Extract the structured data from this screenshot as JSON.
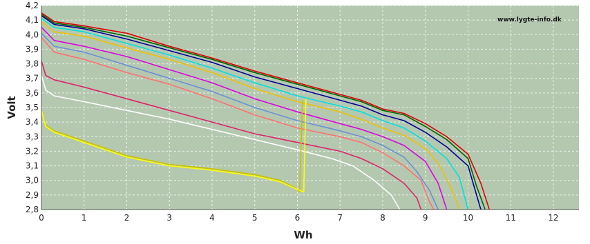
{
  "chart_data": {
    "type": "line",
    "xlabel": "Wh",
    "ylabel": "Volt",
    "xlim": [
      0,
      12.6
    ],
    "ylim": [
      2.8,
      4.2
    ],
    "xticks": [
      "0",
      "1",
      "2",
      "3",
      "4",
      "5",
      "6",
      "7",
      "8",
      "9",
      "10",
      "11",
      "12"
    ],
    "yticks": [
      "2,8",
      "2,9",
      "3,0",
      "3,1",
      "3,2",
      "3,3",
      "3,4",
      "3,5",
      "3,6",
      "3,7",
      "3,8",
      "3,9",
      "4,0",
      "4,1",
      "4,2"
    ],
    "grid": true,
    "watermark": "www.lygte-info.dk",
    "background": "#b4c8b0",
    "series": [
      {
        "color": "#e00000",
        "points": [
          [
            0,
            4.15
          ],
          [
            0.3,
            4.09
          ],
          [
            1,
            4.06
          ],
          [
            2,
            4.01
          ],
          [
            3,
            3.92
          ],
          [
            4,
            3.84
          ],
          [
            5,
            3.75
          ],
          [
            6,
            3.67
          ],
          [
            7,
            3.59
          ],
          [
            7.5,
            3.55
          ],
          [
            8,
            3.49
          ],
          [
            8.5,
            3.46
          ],
          [
            9,
            3.39
          ],
          [
            9.5,
            3.3
          ],
          [
            10,
            3.18
          ],
          [
            10.3,
            2.98
          ],
          [
            10.5,
            2.8
          ]
        ]
      },
      {
        "color": "#006400",
        "points": [
          [
            0,
            4.14
          ],
          [
            0.3,
            4.08
          ],
          [
            1,
            4.05
          ],
          [
            2,
            3.99
          ],
          [
            3,
            3.91
          ],
          [
            4,
            3.83
          ],
          [
            5,
            3.74
          ],
          [
            6,
            3.66
          ],
          [
            7,
            3.58
          ],
          [
            7.5,
            3.54
          ],
          [
            8,
            3.48
          ],
          [
            8.5,
            3.45
          ],
          [
            9,
            3.37
          ],
          [
            9.5,
            3.28
          ],
          [
            10,
            3.15
          ],
          [
            10.2,
            2.96
          ],
          [
            10.4,
            2.8
          ]
        ]
      },
      {
        "color": "#000099",
        "points": [
          [
            0,
            4.13
          ],
          [
            0.3,
            4.07
          ],
          [
            1,
            4.04
          ],
          [
            2,
            3.97
          ],
          [
            3,
            3.89
          ],
          [
            4,
            3.81
          ],
          [
            5,
            3.71
          ],
          [
            6,
            3.63
          ],
          [
            7,
            3.55
          ],
          [
            7.5,
            3.51
          ],
          [
            8,
            3.45
          ],
          [
            8.5,
            3.41
          ],
          [
            9,
            3.33
          ],
          [
            9.5,
            3.23
          ],
          [
            10,
            3.1
          ],
          [
            10.2,
            2.9
          ],
          [
            10.3,
            2.8
          ]
        ]
      },
      {
        "color": "#00e0e0",
        "points": [
          [
            0,
            4.11
          ],
          [
            0.3,
            4.05
          ],
          [
            1,
            4.02
          ],
          [
            2,
            3.94
          ],
          [
            3,
            3.86
          ],
          [
            4,
            3.77
          ],
          [
            5,
            3.67
          ],
          [
            6,
            3.58
          ],
          [
            7,
            3.51
          ],
          [
            7.5,
            3.47
          ],
          [
            8,
            3.41
          ],
          [
            8.5,
            3.36
          ],
          [
            9,
            3.27
          ],
          [
            9.5,
            3.15
          ],
          [
            9.8,
            3.02
          ],
          [
            10,
            2.8
          ]
        ]
      },
      {
        "color": "#f0c000",
        "points": [
          [
            0,
            4.09
          ],
          [
            0.3,
            4.02
          ],
          [
            1,
            3.99
          ],
          [
            2,
            3.91
          ],
          [
            3,
            3.83
          ],
          [
            4,
            3.74
          ],
          [
            5,
            3.63
          ],
          [
            6,
            3.54
          ],
          [
            7,
            3.47
          ],
          [
            7.5,
            3.42
          ],
          [
            8,
            3.36
          ],
          [
            8.5,
            3.31
          ],
          [
            9,
            3.22
          ],
          [
            9.3,
            3.12
          ],
          [
            9.6,
            2.95
          ],
          [
            9.8,
            2.8
          ]
        ]
      },
      {
        "color": "#e000e0",
        "points": [
          [
            0,
            4.05
          ],
          [
            0.3,
            3.96
          ],
          [
            1,
            3.92
          ],
          [
            2,
            3.85
          ],
          [
            3,
            3.76
          ],
          [
            4,
            3.67
          ],
          [
            5,
            3.56
          ],
          [
            6,
            3.47
          ],
          [
            7,
            3.39
          ],
          [
            7.5,
            3.35
          ],
          [
            8,
            3.3
          ],
          [
            8.5,
            3.24
          ],
          [
            9,
            3.13
          ],
          [
            9.3,
            2.98
          ],
          [
            9.5,
            2.8
          ]
        ]
      },
      {
        "color": "#6a8fd8",
        "points": [
          [
            0,
            4.01
          ],
          [
            0.3,
            3.92
          ],
          [
            1,
            3.88
          ],
          [
            2,
            3.79
          ],
          [
            3,
            3.7
          ],
          [
            4,
            3.61
          ],
          [
            5,
            3.5
          ],
          [
            6,
            3.41
          ],
          [
            7,
            3.34
          ],
          [
            7.5,
            3.3
          ],
          [
            8,
            3.24
          ],
          [
            8.5,
            3.16
          ],
          [
            8.8,
            3.06
          ],
          [
            9.1,
            2.93
          ],
          [
            9.3,
            2.8
          ]
        ]
      },
      {
        "color": "#ff7070",
        "points": [
          [
            0,
            3.98
          ],
          [
            0.3,
            3.88
          ],
          [
            1,
            3.83
          ],
          [
            2,
            3.74
          ],
          [
            3,
            3.66
          ],
          [
            4,
            3.56
          ],
          [
            5,
            3.45
          ],
          [
            6,
            3.36
          ],
          [
            7,
            3.3
          ],
          [
            7.5,
            3.26
          ],
          [
            8,
            3.19
          ],
          [
            8.5,
            3.1
          ],
          [
            8.9,
            3.0
          ],
          [
            9.1,
            2.85
          ],
          [
            9.2,
            2.8
          ]
        ]
      },
      {
        "color": "#e0206a",
        "points": [
          [
            0,
            3.82
          ],
          [
            0.1,
            3.72
          ],
          [
            0.3,
            3.69
          ],
          [
            1,
            3.64
          ],
          [
            2,
            3.56
          ],
          [
            3,
            3.48
          ],
          [
            4,
            3.4
          ],
          [
            5,
            3.32
          ],
          [
            6,
            3.26
          ],
          [
            7,
            3.2
          ],
          [
            7.5,
            3.15
          ],
          [
            8,
            3.08
          ],
          [
            8.5,
            2.98
          ],
          [
            8.8,
            2.88
          ],
          [
            8.9,
            2.8
          ]
        ]
      },
      {
        "color": "#ffffff",
        "points": [
          [
            0,
            3.72
          ],
          [
            0.1,
            3.62
          ],
          [
            0.3,
            3.58
          ],
          [
            1,
            3.54
          ],
          [
            2,
            3.48
          ],
          [
            3,
            3.42
          ],
          [
            4,
            3.35
          ],
          [
            5,
            3.28
          ],
          [
            6,
            3.21
          ],
          [
            6.8,
            3.15
          ],
          [
            7.3,
            3.1
          ],
          [
            7.8,
            3.0
          ],
          [
            8.2,
            2.9
          ],
          [
            8.4,
            2.8
          ]
        ]
      },
      {
        "color": "#c8c000",
        "points": [
          [
            0,
            3.48
          ],
          [
            0.1,
            3.38
          ],
          [
            0.3,
            3.34
          ],
          [
            1,
            3.27
          ],
          [
            2,
            3.17
          ],
          [
            3,
            3.11
          ],
          [
            4,
            3.08
          ],
          [
            5,
            3.04
          ],
          [
            5.6,
            3.0
          ],
          [
            5.95,
            2.95
          ],
          [
            6.05,
            2.92
          ],
          [
            6.12,
            3.55
          ]
        ]
      },
      {
        "color": "#ffff00",
        "points": [
          [
            0,
            3.48
          ],
          [
            0.1,
            3.37
          ],
          [
            0.3,
            3.33
          ],
          [
            1,
            3.26
          ],
          [
            2,
            3.16
          ],
          [
            3,
            3.1
          ],
          [
            4,
            3.07
          ],
          [
            5,
            3.03
          ],
          [
            5.6,
            2.99
          ],
          [
            5.98,
            2.94
          ],
          [
            6.15,
            2.92
          ],
          [
            6.2,
            3.56
          ]
        ]
      }
    ]
  }
}
